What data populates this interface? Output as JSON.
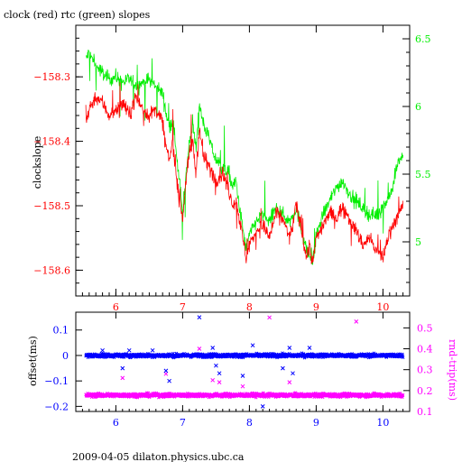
{
  "title": "clock (red) rtc (green) slopes",
  "footer": "2009-04-05  dilaton.physics.ubc.ca",
  "colors": {
    "clock": "#ff0000",
    "rtc": "#00ee00",
    "offset": "#0000ff",
    "rndtrip": "#ff00ff",
    "frame": "#000000"
  },
  "chart_data": [
    {
      "type": "line",
      "title": "clock (red) rtc (green) slopes",
      "ylabel": "clockslope",
      "xlim": [
        5.4,
        10.4
      ],
      "ylim_left": [
        -158.64,
        -158.22
      ],
      "ylim_right": [
        4.6,
        6.6
      ],
      "x_ticks": [
        6,
        7,
        8,
        9,
        10
      ],
      "y_ticks_left": [
        -158.3,
        -158.4,
        -158.5,
        -158.6
      ],
      "y_ticks_right": [
        5,
        5.5,
        6,
        6.5
      ],
      "series": [
        {
          "name": "clock",
          "axis": "left",
          "x": [
            5.55,
            5.6,
            5.7,
            5.8,
            5.9,
            6.0,
            6.1,
            6.2,
            6.3,
            6.4,
            6.5,
            6.6,
            6.7,
            6.75,
            6.8,
            6.85,
            6.9,
            6.95,
            7.0,
            7.05,
            7.1,
            7.15,
            7.2,
            7.25,
            7.3,
            7.4,
            7.5,
            7.6,
            7.7,
            7.75,
            7.8,
            7.85,
            7.9,
            7.95,
            8.0,
            8.1,
            8.2,
            8.3,
            8.4,
            8.5,
            8.6,
            8.65,
            8.7,
            8.75,
            8.8,
            8.85,
            8.9,
            8.95,
            9.0,
            9.1,
            9.2,
            9.3,
            9.4,
            9.5,
            9.6,
            9.7,
            9.8,
            9.9,
            10.0,
            10.05,
            10.1,
            10.15,
            10.2,
            10.3
          ],
          "y": [
            -158.37,
            -158.35,
            -158.33,
            -158.34,
            -158.36,
            -158.35,
            -158.34,
            -158.36,
            -158.33,
            -158.35,
            -158.36,
            -158.35,
            -158.37,
            -158.41,
            -158.43,
            -158.4,
            -158.45,
            -158.48,
            -158.52,
            -158.46,
            -158.42,
            -158.4,
            -158.45,
            -158.38,
            -158.42,
            -158.44,
            -158.46,
            -158.45,
            -158.48,
            -158.5,
            -158.49,
            -158.52,
            -158.55,
            -158.58,
            -158.56,
            -158.54,
            -158.53,
            -158.55,
            -158.51,
            -158.52,
            -158.55,
            -158.53,
            -158.5,
            -158.52,
            -158.55,
            -158.58,
            -158.56,
            -158.59,
            -158.55,
            -158.53,
            -158.51,
            -158.52,
            -158.5,
            -158.52,
            -158.54,
            -158.56,
            -158.55,
            -158.57,
            -158.58,
            -158.56,
            -158.54,
            -158.53,
            -158.52,
            -158.5
          ]
        },
        {
          "name": "rtc",
          "axis": "right",
          "x": [
            5.55,
            5.6,
            5.7,
            5.8,
            5.9,
            6.0,
            6.1,
            6.2,
            6.3,
            6.4,
            6.5,
            6.6,
            6.7,
            6.75,
            6.8,
            6.85,
            6.9,
            6.95,
            7.0,
            7.05,
            7.1,
            7.15,
            7.2,
            7.25,
            7.3,
            7.4,
            7.5,
            7.6,
            7.7,
            7.75,
            7.8,
            7.85,
            7.9,
            7.95,
            8.0,
            8.1,
            8.2,
            8.3,
            8.4,
            8.5,
            8.6,
            8.65,
            8.7,
            8.75,
            8.8,
            8.85,
            8.9,
            8.95,
            9.0,
            9.1,
            9.2,
            9.3,
            9.4,
            9.5,
            9.6,
            9.7,
            9.8,
            9.9,
            10.0,
            10.05,
            10.1,
            10.15,
            10.2,
            10.3
          ],
          "y": [
            6.35,
            6.4,
            6.3,
            6.25,
            6.2,
            6.22,
            6.18,
            6.2,
            6.15,
            6.18,
            6.2,
            6.15,
            6.1,
            5.95,
            5.85,
            5.9,
            5.7,
            5.45,
            5.2,
            5.5,
            5.75,
            5.85,
            5.7,
            6.0,
            5.9,
            5.75,
            5.6,
            5.55,
            5.5,
            5.4,
            5.45,
            5.25,
            5.1,
            4.95,
            5.05,
            5.15,
            5.2,
            5.15,
            5.25,
            5.2,
            5.15,
            5.2,
            5.25,
            5.15,
            5.05,
            4.95,
            4.9,
            4.85,
            5.05,
            5.2,
            5.3,
            5.4,
            5.45,
            5.35,
            5.3,
            5.25,
            5.2,
            5.2,
            5.25,
            5.3,
            5.35,
            5.4,
            5.55,
            5.65
          ]
        }
      ]
    },
    {
      "type": "scatter",
      "xlim": [
        5.4,
        10.4
      ],
      "ylim_left": [
        -0.22,
        0.17
      ],
      "ylim_right": [
        0.1,
        0.575
      ],
      "x_ticks": [
        6,
        7,
        8,
        9,
        10
      ],
      "y_ticks_left": [
        0.1,
        0,
        -0.1,
        -0.2
      ],
      "y_ticks_right": [
        0.1,
        0.2,
        0.3,
        0.4,
        0.5
      ],
      "ylabel": "offset(ms)",
      "ylabel_right": "rnd-trip(ms)",
      "series": [
        {
          "name": "offset",
          "axis": "left",
          "band_level": 0,
          "band_spread": 0.012,
          "outliers_x": [
            5.8,
            6.1,
            6.2,
            6.55,
            6.75,
            6.8,
            7.25,
            7.45,
            7.5,
            7.55,
            7.9,
            8.05,
            8.2,
            8.5,
            8.6,
            8.65,
            8.9
          ],
          "outliers_y": [
            0.02,
            -0.05,
            0.02,
            0.02,
            -0.06,
            -0.1,
            0.15,
            0.03,
            -0.04,
            -0.07,
            -0.08,
            0.04,
            -0.2,
            -0.05,
            0.03,
            -0.07,
            0.03
          ]
        },
        {
          "name": "rnd-trip",
          "axis": "right",
          "band_level": 0.178,
          "band_spread": 0.015,
          "outliers_x": [
            6.1,
            6.75,
            7.25,
            7.45,
            7.55,
            7.9,
            8.3,
            8.6,
            9.6
          ],
          "outliers_y": [
            0.26,
            0.28,
            0.4,
            0.25,
            0.24,
            0.22,
            0.55,
            0.24,
            0.53
          ]
        }
      ]
    }
  ]
}
